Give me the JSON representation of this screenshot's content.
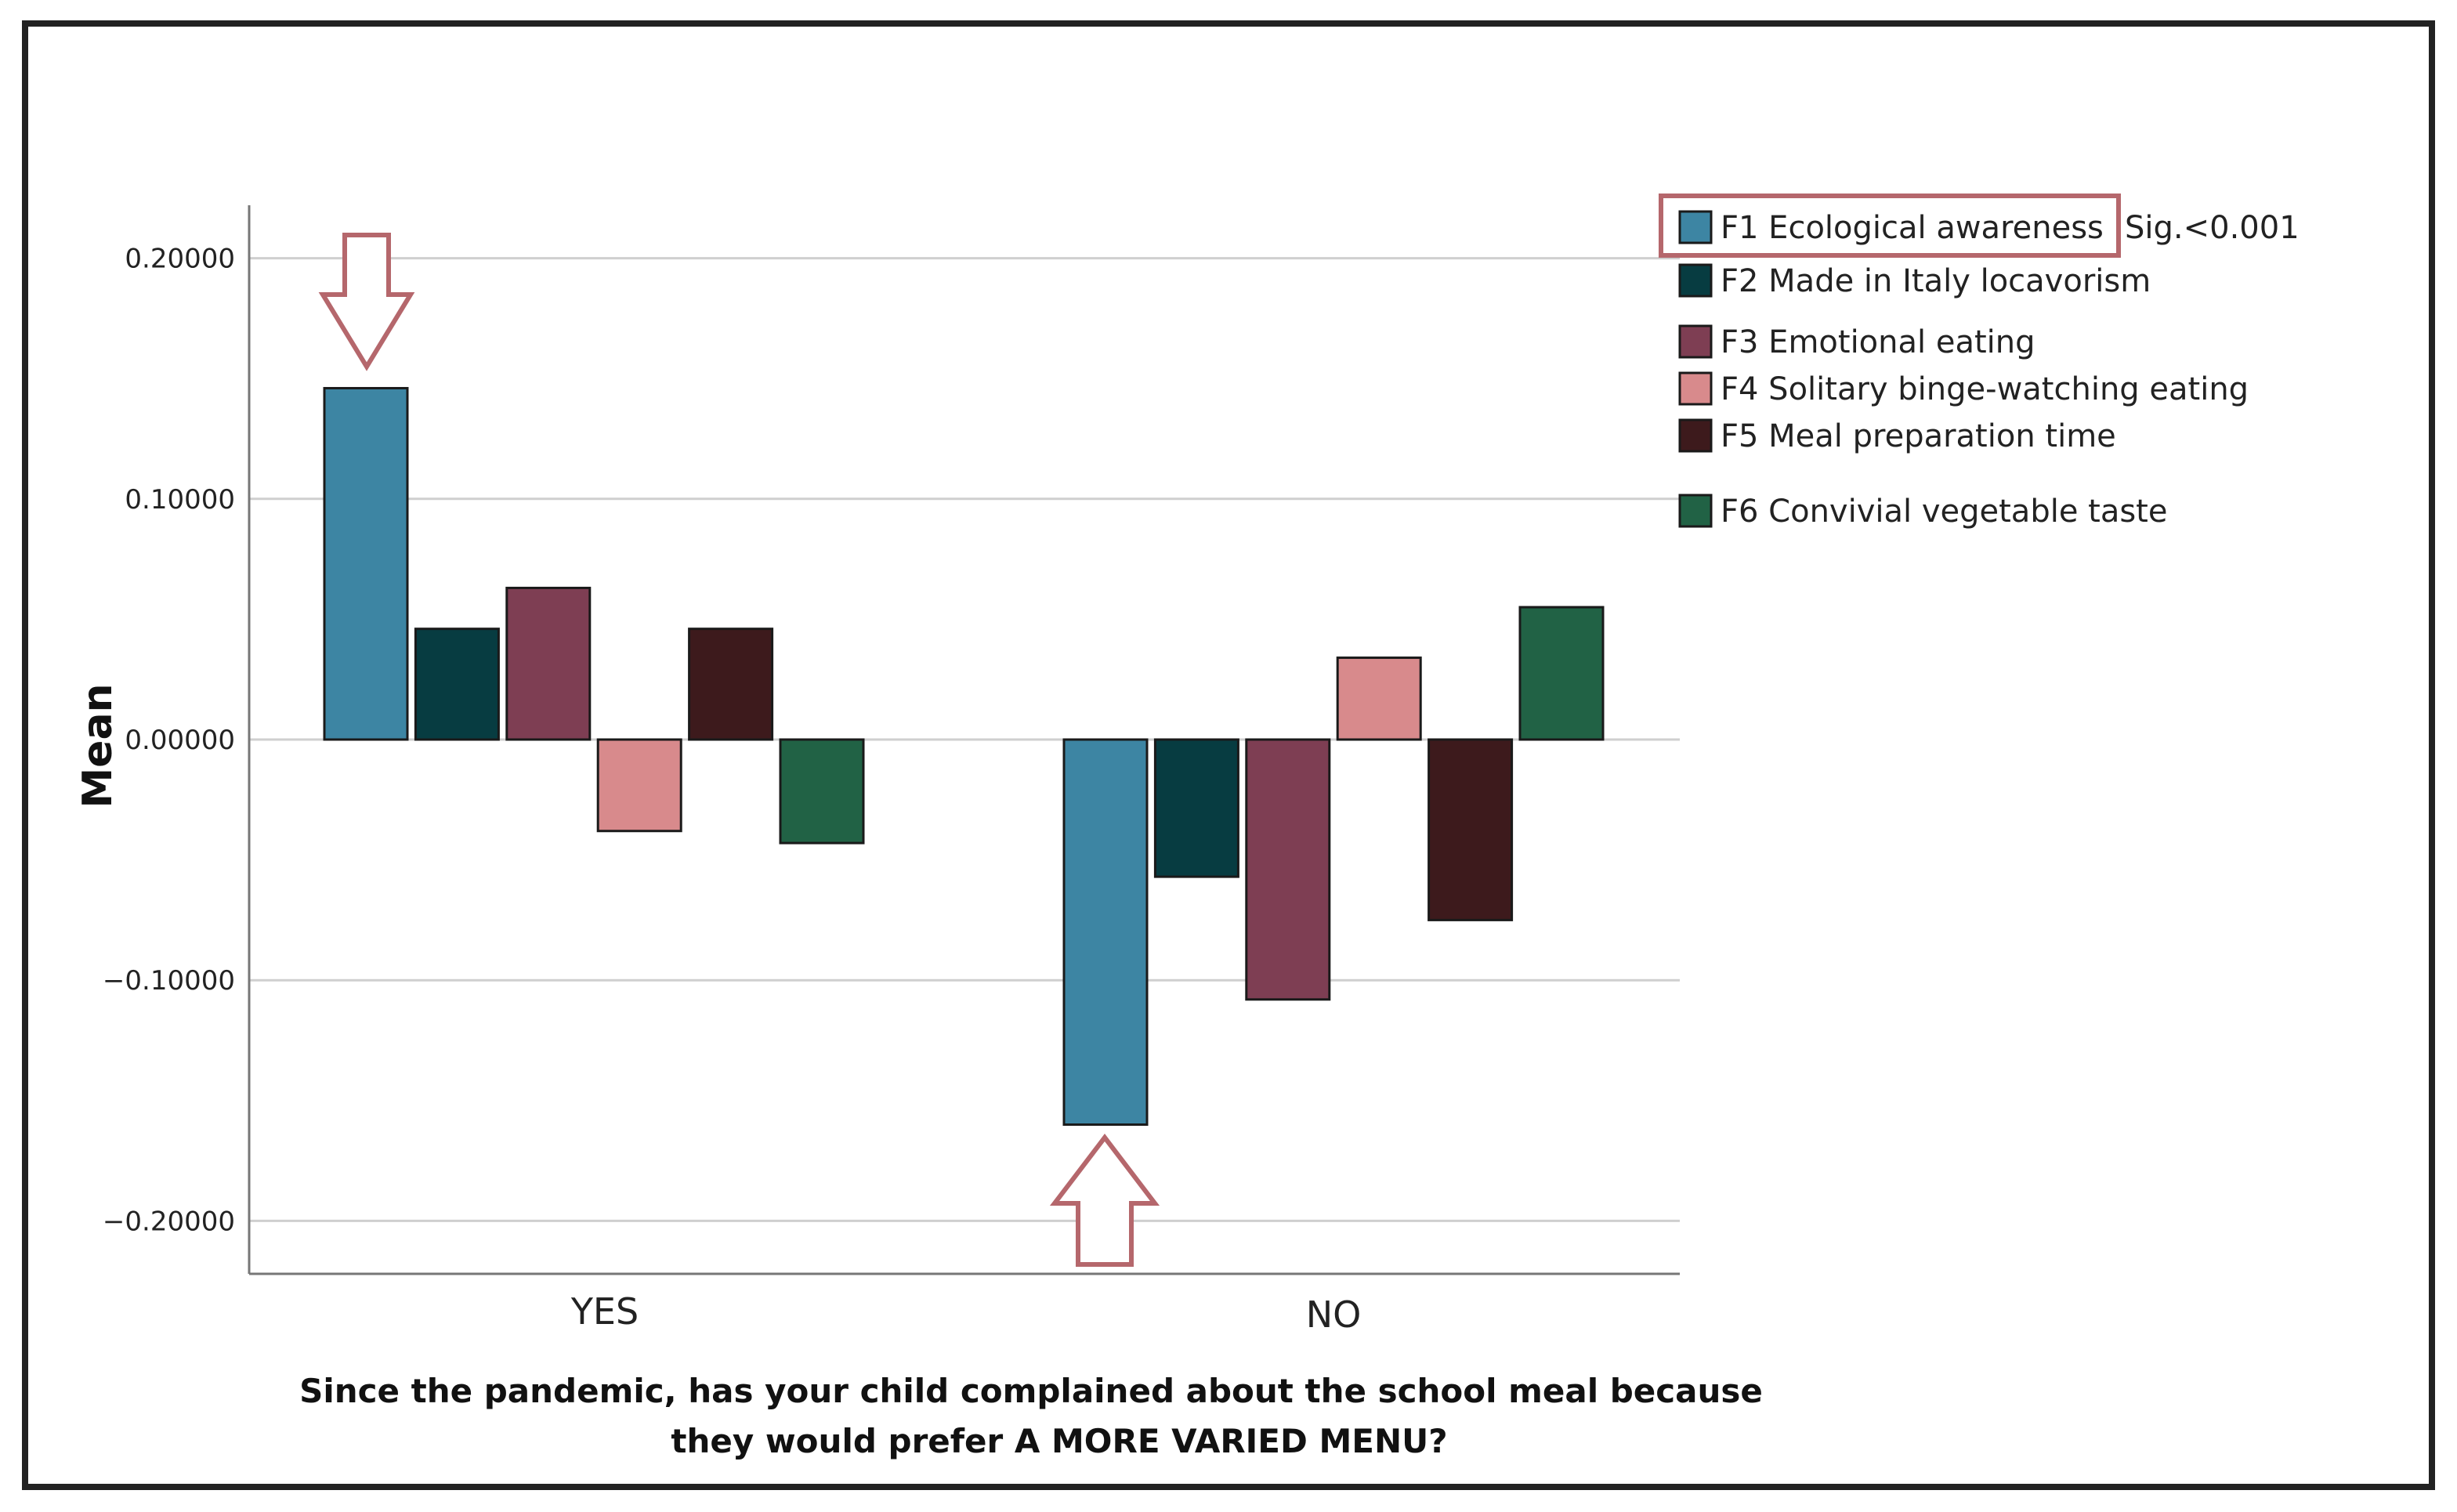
{
  "chart_data": {
    "type": "bar",
    "categories": [
      "YES",
      "NO"
    ],
    "series": [
      {
        "name": "F1 Ecological awareness",
        "color": "#3D85A3",
        "values": [
          0.146,
          -0.16
        ]
      },
      {
        "name": "F2 Made in Italy locavorism",
        "color": "#073C41",
        "values": [
          0.046,
          -0.057
        ]
      },
      {
        "name": "F3 Emotional eating",
        "color": "#7E3E53",
        "values": [
          0.063,
          -0.108
        ]
      },
      {
        "name": "F4 Solitary binge-watching eating",
        "color": "#D88A8C",
        "values": [
          -0.038,
          0.034
        ]
      },
      {
        "name": "F5 Meal preparation time",
        "color": "#3D1A1C",
        "values": [
          0.046,
          -0.075
        ]
      },
      {
        "name": "F6 Convivial vegetable taste",
        "color": "#216245",
        "values": [
          -0.043,
          0.055
        ]
      }
    ],
    "ylabel": "Mean",
    "xlabel_lines": [
      "Since the pandemic, has your child complained about the school meal because",
      "they would prefer  A MORE VARIED MENU?"
    ],
    "ylim": [
      -0.222,
      0.222
    ],
    "yticks": [
      0.2,
      0.1,
      0.0,
      -0.1,
      -0.2
    ],
    "ytick_labels": [
      "0.20000",
      "0.10000",
      "0.00000",
      "−0.10000",
      "−0.20000"
    ],
    "legend_position": "top-right",
    "annotation": "Sig.<0.001",
    "highlight_color": "#B5676C"
  }
}
